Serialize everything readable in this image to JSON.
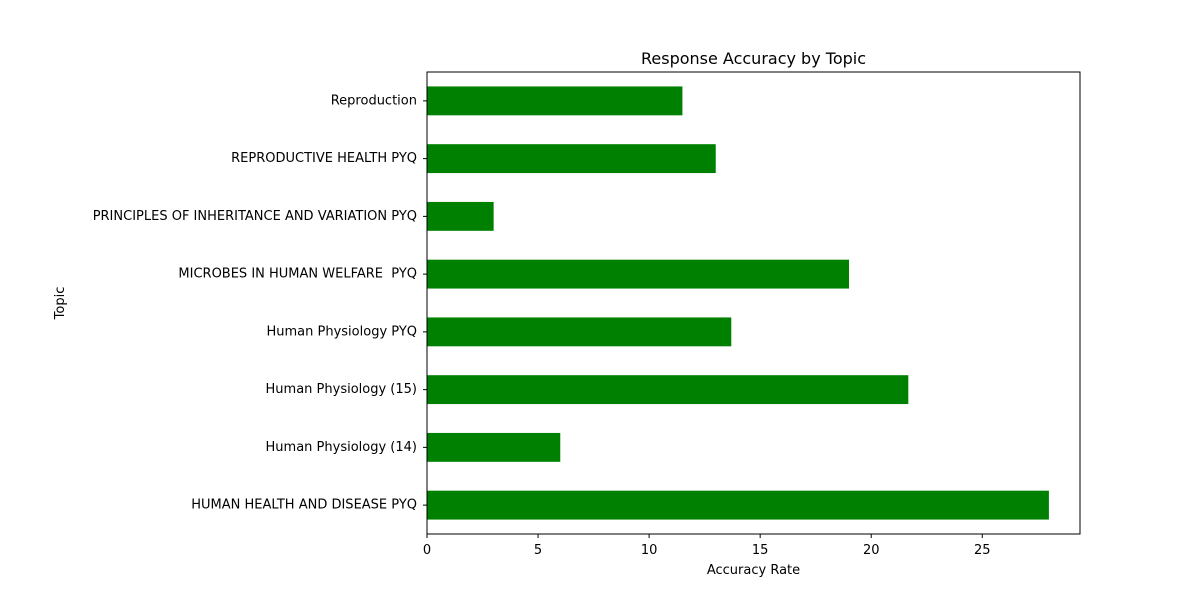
{
  "chart_data": {
    "type": "bar",
    "orientation": "horizontal",
    "title": "Response Accuracy by Topic",
    "xlabel": "Accuracy Rate",
    "ylabel": "Topic",
    "categories": [
      "HUMAN HEALTH AND DISEASE PYQ",
      "Human Physiology (14)",
      "Human Physiology (15)",
      "Human Physiology PYQ",
      "MICROBES IN HUMAN WELFARE  PYQ",
      "PRINCIPLES OF INHERITANCE AND VARIATION PYQ",
      "REPRODUCTIVE HEALTH PYQ",
      "Reproduction"
    ],
    "values": [
      28,
      6,
      21.67,
      13.7,
      19,
      3,
      13,
      11.5
    ],
    "xlim": [
      0,
      29.4
    ],
    "xticks": [
      0,
      5,
      10,
      15,
      20,
      25
    ],
    "bar_color": "#008000",
    "grid": false,
    "legend": "none"
  }
}
